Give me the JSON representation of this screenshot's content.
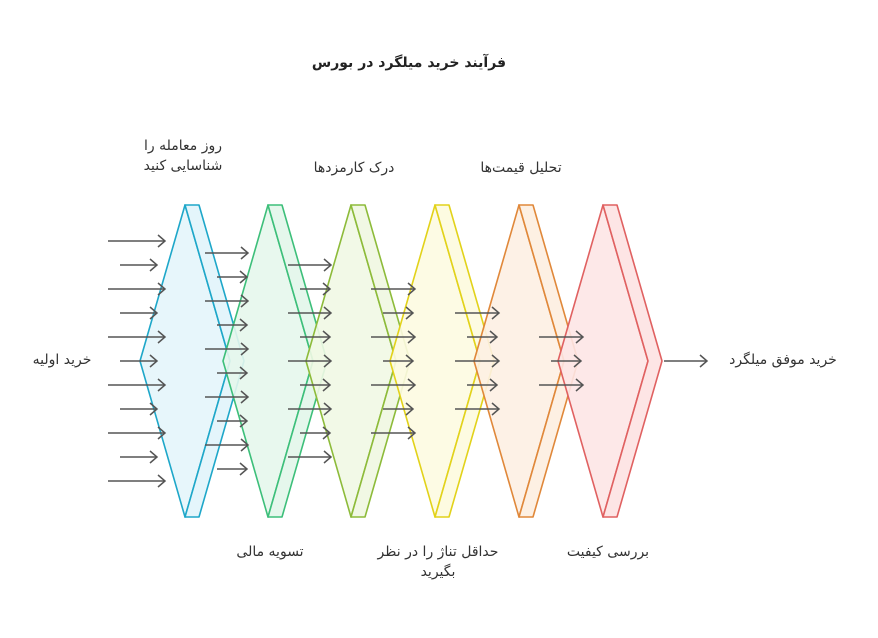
{
  "title": "فرآیند خرید میلگرد در بورس",
  "input_label": "خرید اولیه",
  "output_label": "خرید موفق میلگرد",
  "stages": [
    {
      "name": "شناسایی روز معامله",
      "label_lines": [
        "روز معامله را",
        "شناسایی کنید"
      ],
      "label_position": "top",
      "color": "#1ea7c9",
      "fill": "#e4f5fb",
      "arrows_in": 11
    },
    {
      "name": "تسویه مالی",
      "label_lines": [
        "تسویه مالی"
      ],
      "label_position": "bottom",
      "color": "#3dbf7a",
      "fill": "#e5f7ec",
      "arrows_in": 10
    },
    {
      "name": "درک کارمزدها",
      "label_lines": [
        "درک کارمزدها"
      ],
      "label_position": "top",
      "color": "#8dbb3a",
      "fill": "#f1f8e4",
      "arrows_in": 9
    },
    {
      "name": "حداقل تناژ",
      "label_lines": [
        "حداقل تناژ را در نظر",
        "بگیرید"
      ],
      "label_position": "bottom",
      "color": "#e2d21a",
      "fill": "#fdfbe1",
      "arrows_in": 7
    },
    {
      "name": "تحلیل قیمت‌ها",
      "label_lines": [
        "تحلیل قیمت‌ها"
      ],
      "label_position": "top",
      "color": "#e0883a",
      "fill": "#fdf0e3",
      "arrows_in": 5
    },
    {
      "name": "بررسی کیفیت",
      "label_lines": [
        "بررسی کیفیت"
      ],
      "label_position": "bottom",
      "color": "#e06161",
      "fill": "#fde5e5",
      "arrows_in": 3
    }
  ]
}
